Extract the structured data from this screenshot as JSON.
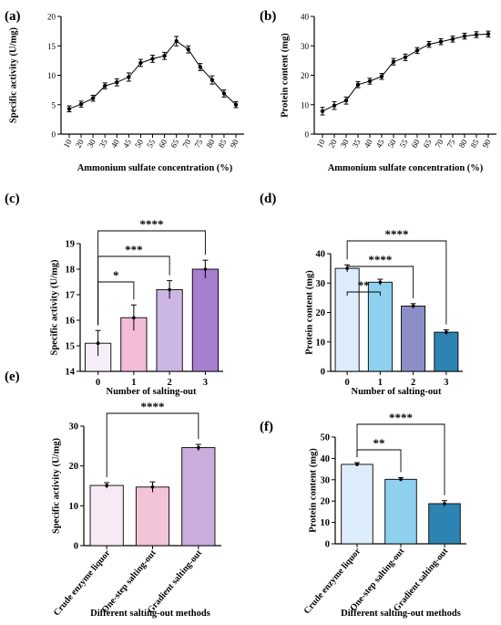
{
  "chart_data": [
    {
      "type": "line",
      "panel": "(a)",
      "xlabel": "Ammonium sulfate concentration (%)",
      "ylabel": "Specific activity (U/mg)",
      "ylim": [
        0,
        20
      ],
      "yticks": [
        "0",
        "5",
        "10",
        "15",
        "20"
      ],
      "x": [
        "10",
        "20",
        "30",
        "35",
        "40",
        "45",
        "50",
        "55",
        "60",
        "65",
        "70",
        "75",
        "80",
        "85",
        "90"
      ],
      "values": [
        4.3,
        5.1,
        6.1,
        8.2,
        8.8,
        9.7,
        12.1,
        12.8,
        13.3,
        15.8,
        14.4,
        11.4,
        9.2,
        6.9,
        5.0
      ],
      "errors": [
        0.5,
        0.5,
        0.5,
        0.5,
        0.6,
        0.7,
        0.6,
        0.6,
        0.6,
        0.8,
        0.6,
        0.6,
        0.7,
        0.6,
        0.5
      ],
      "grid": false
    },
    {
      "type": "line",
      "panel": "(b)",
      "xlabel": "Ammonium sulfate concentration (%)",
      "ylabel": "Protein content (mg)",
      "ylim": [
        0,
        40
      ],
      "yticks": [
        "0",
        "10",
        "20",
        "30",
        "40"
      ],
      "x": [
        "10",
        "20",
        "30",
        "35",
        "40",
        "45",
        "50",
        "55",
        "60",
        "65",
        "70",
        "75",
        "80",
        "85",
        "90"
      ],
      "values": [
        7.8,
        9.7,
        11.4,
        16.8,
        18.0,
        19.6,
        24.6,
        26.1,
        28.4,
        30.5,
        31.4,
        32.3,
        33.3,
        33.8,
        34.0
      ],
      "errors": [
        1.3,
        1.3,
        1.2,
        1.0,
        1.0,
        1.0,
        1.1,
        1.1,
        1.0,
        1.0,
        1.0,
        1.0,
        1.0,
        1.0,
        1.0
      ],
      "grid": false
    },
    {
      "type": "bar",
      "panel": "(c)",
      "xlabel": "Number of salting-out",
      "ylabel": "Specific activity (U/mg)",
      "ylim": [
        14,
        19
      ],
      "yticks": [
        "14",
        "15",
        "16",
        "17",
        "18",
        "19"
      ],
      "categories": [
        "0",
        "1",
        "2",
        "3"
      ],
      "values": [
        15.1,
        16.1,
        17.2,
        18.0
      ],
      "errors": [
        0.5,
        0.5,
        0.35,
        0.35
      ],
      "colors": [
        "#f6eef8",
        "#f2bcd9",
        "#cbb6e4",
        "#a67fcf"
      ],
      "significance": [
        {
          "from": 0,
          "to": 1,
          "label": "*"
        },
        {
          "from": 0,
          "to": 2,
          "label": "***"
        },
        {
          "from": 0,
          "to": 3,
          "label": "****"
        }
      ]
    },
    {
      "type": "bar",
      "panel": "(d)",
      "xlabel": "Number of salting-out",
      "ylabel": "Protein content (mg)",
      "ylim": [
        0,
        40
      ],
      "yticks": [
        "0",
        "10",
        "20",
        "30",
        "40"
      ],
      "categories": [
        "0",
        "1",
        "2",
        "3"
      ],
      "values": [
        35.0,
        30.3,
        22.2,
        13.3
      ],
      "errors": [
        1.2,
        1.0,
        0.8,
        0.8
      ],
      "colors": [
        "#ddecfb",
        "#8ed0ef",
        "#8b8fc5",
        "#2e83b2"
      ],
      "significance": [
        {
          "from": 0,
          "to": 1,
          "label": "**"
        },
        {
          "from": 0,
          "to": 2,
          "label": "****"
        },
        {
          "from": 0,
          "to": 3,
          "label": "****"
        }
      ]
    },
    {
      "type": "bar",
      "panel": "(e)",
      "xlabel": "Different salting-out methods",
      "ylabel": "Specific activity (U/mg)",
      "ylim": [
        0,
        30
      ],
      "yticks": [
        "0",
        "10",
        "20",
        "30"
      ],
      "categories": [
        "Crude enzyme liquor",
        "One-step salting-out",
        "Gradient salting-out"
      ],
      "values": [
        15.1,
        14.7,
        24.6
      ],
      "errors": [
        0.7,
        1.3,
        0.8
      ],
      "colors": [
        "#f7eaf4",
        "#f3c3d8",
        "#c9aedd"
      ],
      "significance": [
        {
          "from": 0,
          "to": 2,
          "label": "****"
        }
      ]
    },
    {
      "type": "bar",
      "panel": "(f)",
      "xlabel": "Different salting-out methods",
      "ylabel": "Protein content (mg)",
      "ylim": [
        0,
        50
      ],
      "yticks": [
        "0",
        "10",
        "20",
        "30",
        "40",
        "50"
      ],
      "categories": [
        "Crude enzyme liquor",
        "One-step salting-out",
        "Gradient salting-out"
      ],
      "values": [
        37.2,
        30.2,
        18.8
      ],
      "errors": [
        0.8,
        0.8,
        1.4
      ],
      "colors": [
        "#deedfb",
        "#8fd0ef",
        "#2d84b3"
      ],
      "significance": [
        {
          "from": 0,
          "to": 1,
          "label": "**"
        },
        {
          "from": 0,
          "to": 2,
          "label": "****"
        }
      ]
    }
  ]
}
